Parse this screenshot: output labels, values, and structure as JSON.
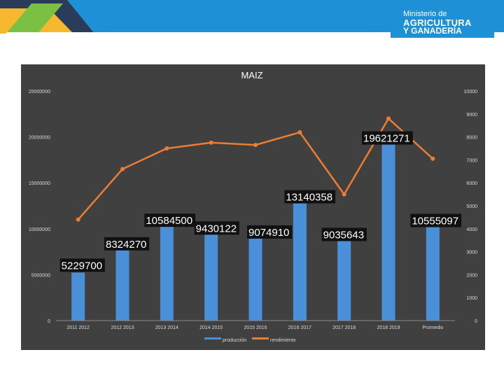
{
  "brand": {
    "line1": "Ministerio de",
    "line2": "AGRICULTURA",
    "line3": "Y GANADERÍA",
    "color": "#1e90d6"
  },
  "colors": {
    "panel_bg": "#404040",
    "bar": "#4a90d9",
    "line": "#ed7d31",
    "axis_text": "#d9d9d9",
    "header_green": "#7ac143",
    "header_yellow": "#f5b82e",
    "header_navy": "#2b3b5a",
    "header_blue": "#1e90d6"
  },
  "chart_data": {
    "type": "bar",
    "title": "MAIZ",
    "categories": [
      "2011 2012",
      "2012 2013",
      "2013 2014",
      "2014 2015",
      "2015 2016",
      "2016 2017",
      "2017 2018",
      "2018 2019",
      "Promedio"
    ],
    "series": [
      {
        "name": "producción",
        "type": "bar",
        "axis": "left",
        "values": [
          5229700,
          8324270,
          10584500,
          9430122,
          9074910,
          13140358,
          9035643,
          19621271,
          10555097
        ],
        "labels": [
          "5229700",
          "8324270",
          "10584500",
          "9430122",
          "9074910",
          "13140358",
          "9035643",
          "19621271",
          "10555097"
        ]
      },
      {
        "name": "rendimiento",
        "type": "line",
        "axis": "right",
        "values": [
          4400,
          6600,
          7500,
          7750,
          7650,
          8200,
          5500,
          8800,
          7050
        ]
      }
    ],
    "y_left": {
      "min": 0,
      "max": 25000000,
      "ticks": [
        "0",
        "5000000",
        "10000000",
        "15000000",
        "20000000",
        "25000000"
      ]
    },
    "y_right": {
      "min": 0,
      "max": 10000,
      "ticks": [
        "0",
        "1000",
        "2000",
        "3000",
        "4000",
        "5000",
        "6000",
        "7000",
        "8000",
        "9000",
        "10000"
      ]
    },
    "grid": false,
    "legend_position": "bottom"
  }
}
